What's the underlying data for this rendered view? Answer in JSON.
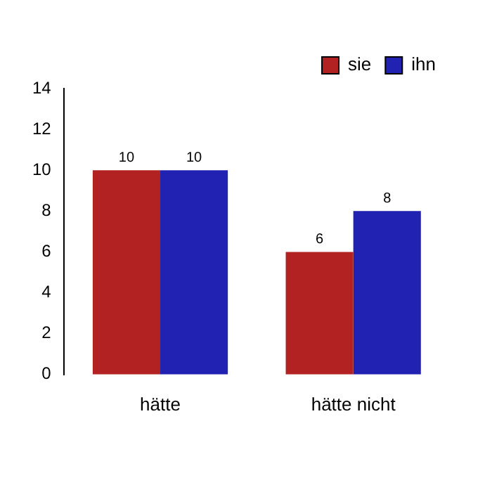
{
  "chart_data": {
    "type": "bar",
    "categories": [
      "hätte",
      "hätte nicht"
    ],
    "series": [
      {
        "name": "sie",
        "color": "#b22222",
        "values": [
          10,
          6
        ]
      },
      {
        "name": "ihn",
        "color": "#2222b2",
        "values": [
          10,
          8
        ]
      }
    ],
    "ylim": [
      0,
      14
    ],
    "yticks": [
      0,
      2,
      4,
      6,
      8,
      10,
      12,
      14
    ],
    "grid": false,
    "legend": "top right",
    "data_labels": true
  }
}
